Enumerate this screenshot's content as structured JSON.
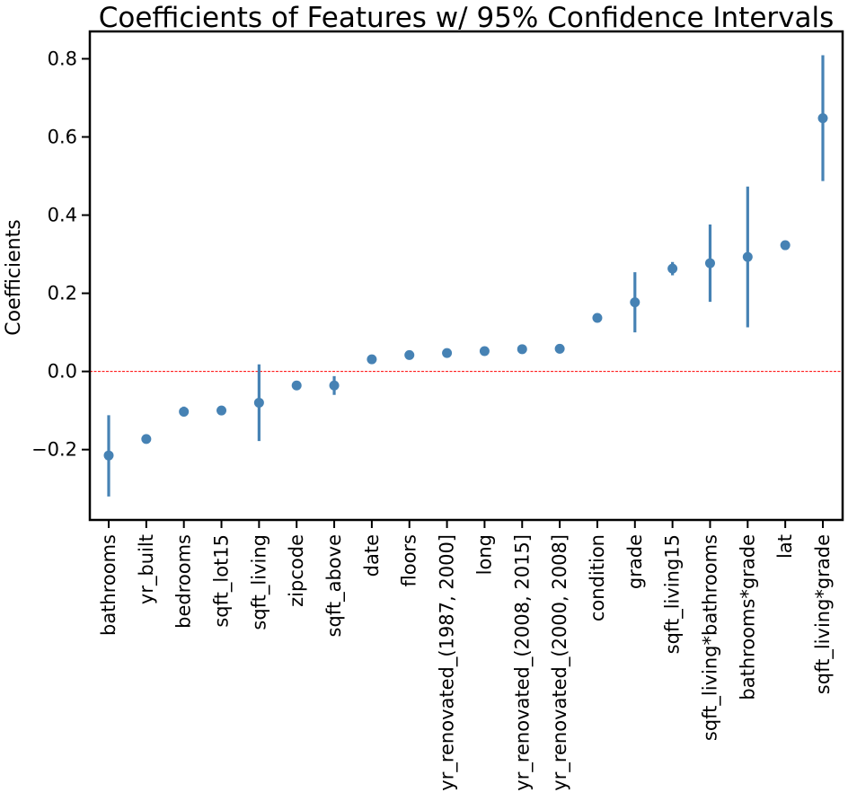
{
  "chart_data": {
    "type": "scatter",
    "title": "Coefficients of Features w/ 95% Confidence Intervals",
    "xlabel": "",
    "ylabel": "Coefficients",
    "ylim": [
      -0.38,
      0.87
    ],
    "yticks": [
      -0.2,
      0.0,
      0.2,
      0.4,
      0.6,
      0.8
    ],
    "ytick_labels": [
      "−0.2",
      "0.0",
      "0.2",
      "0.4",
      "0.6",
      "0.8"
    ],
    "categories": [
      "bathrooms",
      "yr_built",
      "bedrooms",
      "sqft_lot15",
      "sqft_living",
      "zipcode",
      "sqft_above",
      "date",
      "floors",
      "yr_renovated_(1987, 2000]",
      "long",
      "yr_renovated_(2008, 2015]",
      "yr_renovated_(2000, 2008]",
      "condition",
      "grade",
      "sqft_living15",
      "sqft_living*bathrooms",
      "bathrooms*grade",
      "lat",
      "sqft_living*grade"
    ],
    "values": [
      -0.215,
      -0.173,
      -0.103,
      -0.1,
      -0.08,
      -0.036,
      -0.036,
      0.031,
      0.042,
      0.047,
      0.052,
      0.057,
      0.058,
      0.137,
      0.177,
      0.263,
      0.277,
      0.293,
      0.323,
      0.648
    ],
    "ci_lower": [
      -0.32,
      -0.177,
      -0.115,
      -0.112,
      -0.178,
      -0.041,
      -0.06,
      0.027,
      0.037,
      0.038,
      0.041,
      0.045,
      0.046,
      0.128,
      0.1,
      0.246,
      0.178,
      0.113,
      0.319,
      0.487
    ],
    "ci_upper": [
      -0.112,
      -0.169,
      -0.09,
      -0.088,
      0.018,
      -0.031,
      -0.012,
      0.035,
      0.047,
      0.056,
      0.063,
      0.069,
      0.07,
      0.146,
      0.254,
      0.28,
      0.376,
      0.473,
      0.327,
      0.809
    ],
    "reference_line": 0.0,
    "colors": {
      "marker": "#4682b4",
      "reference": "#ff0000",
      "axis": "#000000"
    },
    "grid": false,
    "legend": "none"
  }
}
